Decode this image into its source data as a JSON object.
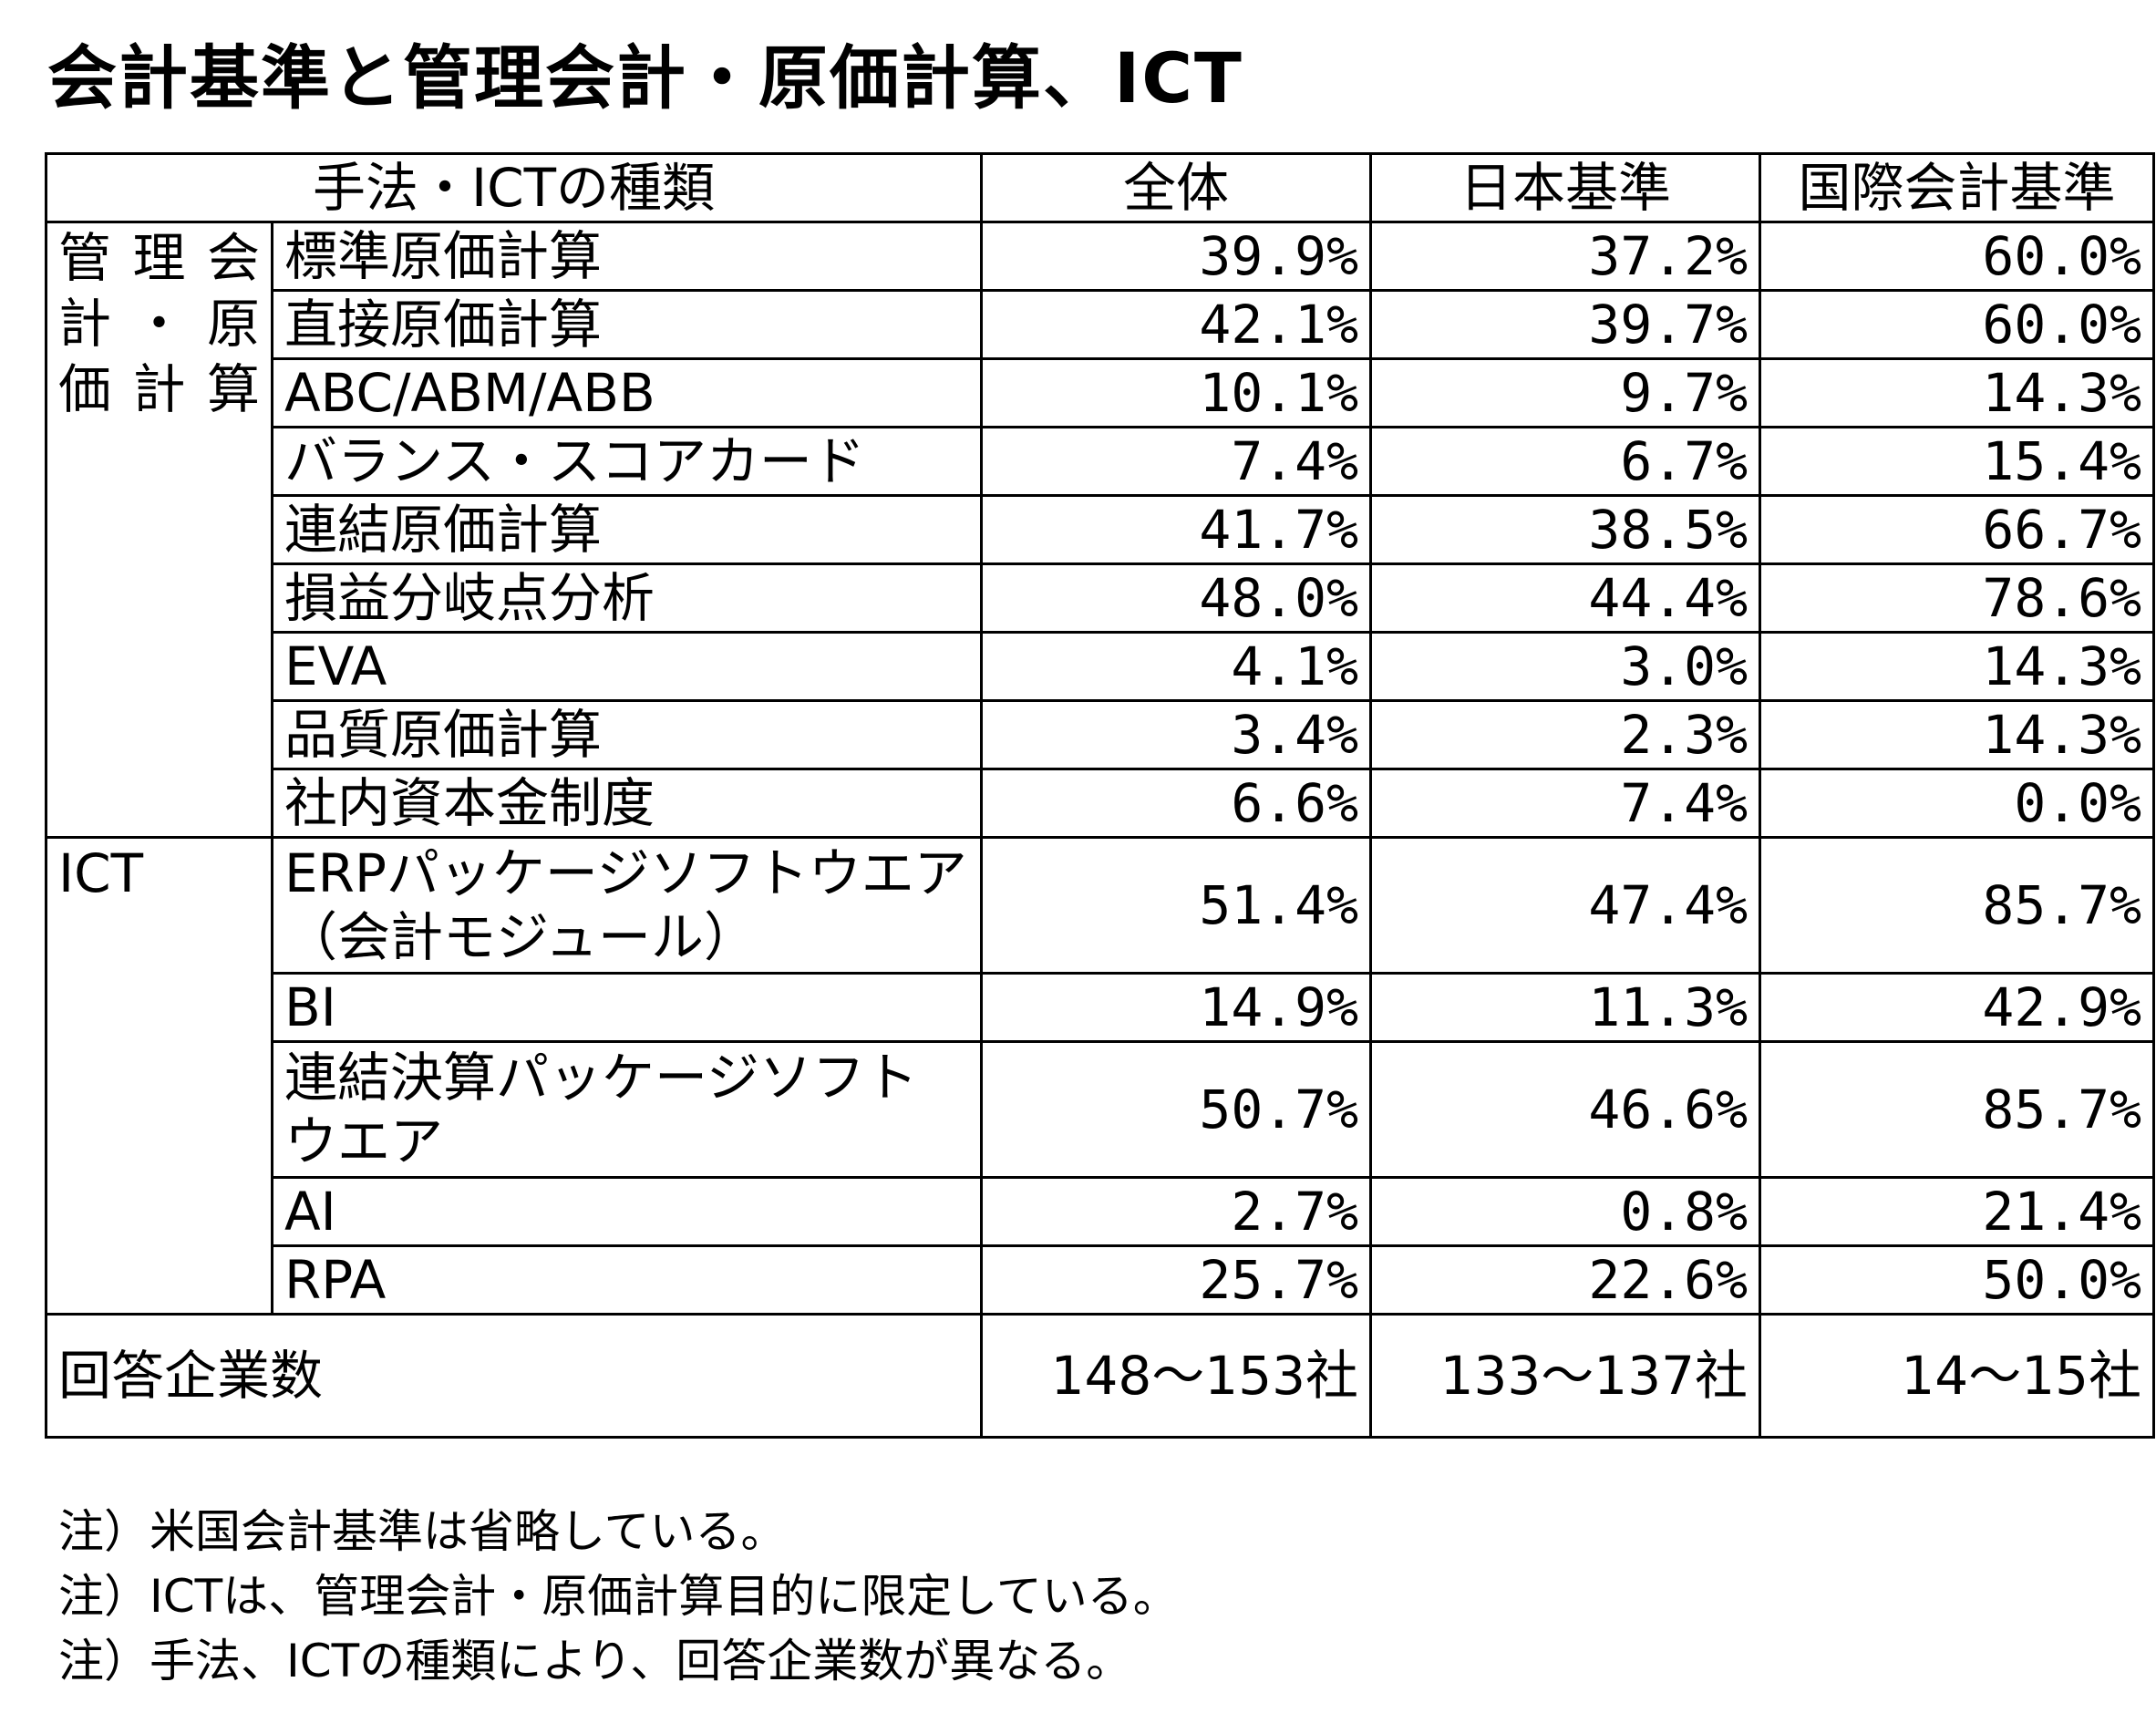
{
  "title": "会計基準と管理会計・原価計算、ICT",
  "table": {
    "headers": [
      "手法・ICTの種類",
      "全体",
      "日本基準",
      "国際会計基準"
    ],
    "groups": [
      {
        "name": "管理会計・原価計算",
        "rows": [
          {
            "label": "標準原価計算",
            "all": "39.9%",
            "japan": "37.2%",
            "ifrs": "60.0%"
          },
          {
            "label": "直接原価計算",
            "all": "42.1%",
            "japan": "39.7%",
            "ifrs": "60.0%"
          },
          {
            "label": "ABC/ABM/ABB",
            "all": "10.1%",
            "japan": "9.7%",
            "ifrs": "14.3%"
          },
          {
            "label": "バランス・スコアカード",
            "all": "7.4%",
            "japan": "6.7%",
            "ifrs": "15.4%"
          },
          {
            "label": "連結原価計算",
            "all": "41.7%",
            "japan": "38.5%",
            "ifrs": "66.7%"
          },
          {
            "label": "損益分岐点分析",
            "all": "48.0%",
            "japan": "44.4%",
            "ifrs": "78.6%"
          },
          {
            "label": "EVA",
            "all": "4.1%",
            "japan": "3.0%",
            "ifrs": "14.3%"
          },
          {
            "label": "品質原価計算",
            "all": "3.4%",
            "japan": "2.3%",
            "ifrs": "14.3%"
          },
          {
            "label": "社内資本金制度",
            "all": "6.6%",
            "japan": "7.4%",
            "ifrs": "0.0%"
          }
        ]
      },
      {
        "name": "ICT",
        "rows": [
          {
            "label": "ERPパッケージソフトウエア（会計モジュール）",
            "all": "51.4%",
            "japan": "47.4%",
            "ifrs": "85.7%"
          },
          {
            "label": "BI",
            "all": "14.9%",
            "japan": "11.3%",
            "ifrs": "42.9%"
          },
          {
            "label": "連結決算パッケージソフトウエア",
            "all": "50.7%",
            "japan": "46.6%",
            "ifrs": "85.7%"
          },
          {
            "label": "AI",
            "all": "2.7%",
            "japan": "0.8%",
            "ifrs": "21.4%"
          },
          {
            "label": "RPA",
            "all": "25.7%",
            "japan": "22.6%",
            "ifrs": "50.0%"
          }
        ]
      }
    ],
    "total": {
      "label": "回答企業数",
      "all": "148～153社",
      "japan": "133～137社",
      "ifrs": "14～15社"
    }
  },
  "notes": [
    "注）米国会計基準は省略している。",
    "注）ICTは、管理会計・原価計算目的に限定している。",
    "注）手法、ICTの種類により、回答企業数が異なる。"
  ]
}
